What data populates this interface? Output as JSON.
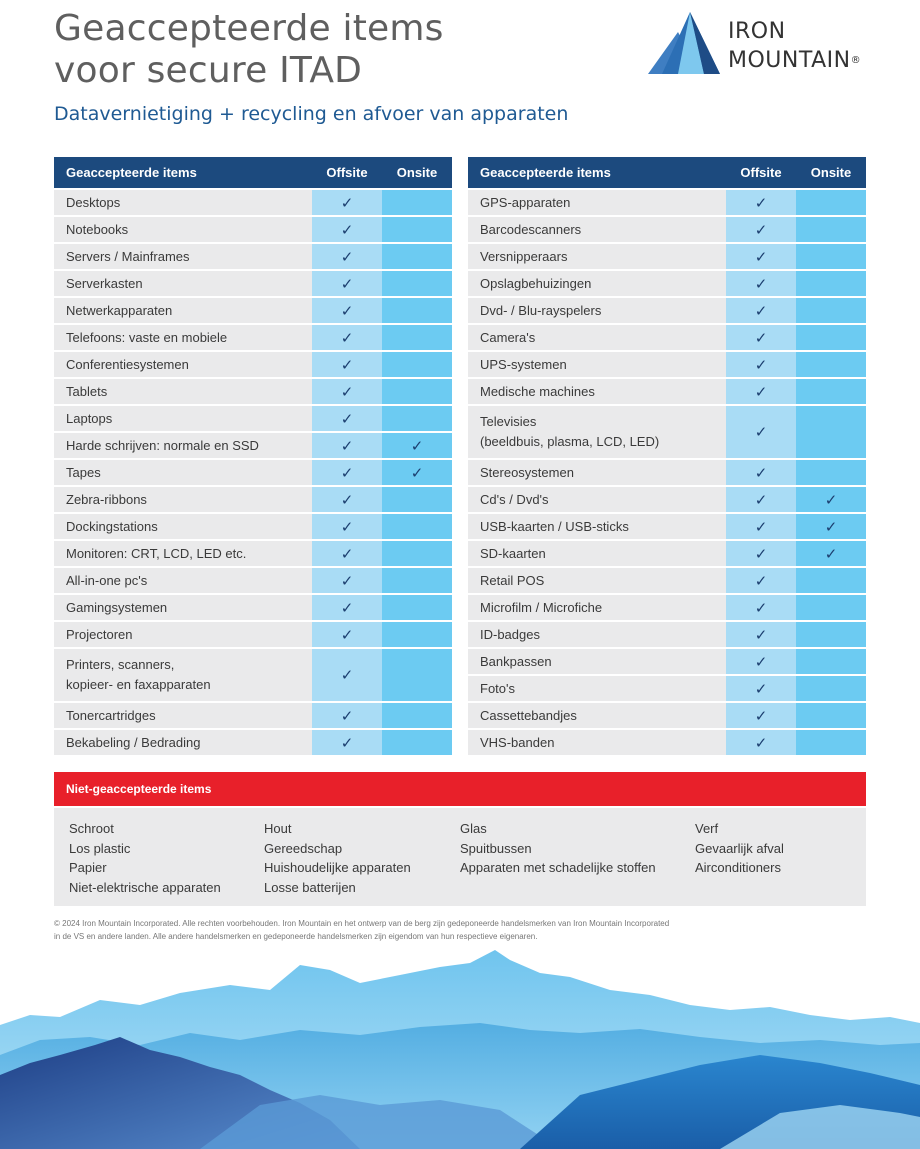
{
  "header": {
    "title_line1": "Geaccepteerde items",
    "title_line2": "voor secure ITAD",
    "subtitle": "Datavernietiging + recycling en afvoer van apparaten"
  },
  "logo": {
    "line1": "IRON",
    "line2": "MOUNTAIN",
    "reg": "®"
  },
  "check_symbol": "✓",
  "table_headers": {
    "item": "Geaccepteerde items",
    "offsite": "Offsite",
    "onsite": "Onsite"
  },
  "table_left": [
    {
      "line1": "Desktops",
      "offsite": true,
      "onsite": false
    },
    {
      "line1": "Notebooks",
      "offsite": true,
      "onsite": false
    },
    {
      "line1": "Servers / Mainframes",
      "offsite": true,
      "onsite": false
    },
    {
      "line1": "Serverkasten",
      "offsite": true,
      "onsite": false
    },
    {
      "line1": "Netwerkapparaten",
      "offsite": true,
      "onsite": false
    },
    {
      "line1": "Telefoons: vaste en mobiele",
      "offsite": true,
      "onsite": false
    },
    {
      "line1": "Conferentiesystemen",
      "offsite": true,
      "onsite": false
    },
    {
      "line1": "Tablets",
      "offsite": true,
      "onsite": false
    },
    {
      "line1": "Laptops",
      "offsite": true,
      "onsite": false
    },
    {
      "line1": "Harde schrijven: normale en SSD",
      "offsite": true,
      "onsite": true
    },
    {
      "line1": "Tapes",
      "offsite": true,
      "onsite": true
    },
    {
      "line1": "Zebra-ribbons",
      "offsite": true,
      "onsite": false
    },
    {
      "line1": "Dockingstations",
      "offsite": true,
      "onsite": false
    },
    {
      "line1": "Monitoren: CRT, LCD, LED etc.",
      "offsite": true,
      "onsite": false
    },
    {
      "line1": "All-in-one pc's",
      "offsite": true,
      "onsite": false
    },
    {
      "line1": "Gamingsystemen",
      "offsite": true,
      "onsite": false
    },
    {
      "line1": "Projectoren",
      "offsite": true,
      "onsite": false
    },
    {
      "line1": "Printers, scanners,",
      "line2": "kopieer- en faxapparaten",
      "offsite": true,
      "onsite": false
    },
    {
      "line1": "Tonercartridges",
      "offsite": true,
      "onsite": false
    },
    {
      "line1": "Bekabeling / Bedrading",
      "offsite": true,
      "onsite": false
    }
  ],
  "table_right": [
    {
      "line1": "GPS-apparaten",
      "offsite": true,
      "onsite": false
    },
    {
      "line1": "Barcodescanners",
      "offsite": true,
      "onsite": false
    },
    {
      "line1": "Versnipperaars",
      "offsite": true,
      "onsite": false
    },
    {
      "line1": "Opslagbehuizingen",
      "offsite": true,
      "onsite": false
    },
    {
      "line1": "Dvd- / Blu-rayspelers",
      "offsite": true,
      "onsite": false
    },
    {
      "line1": "Camera's",
      "offsite": true,
      "onsite": false
    },
    {
      "line1": "UPS-systemen",
      "offsite": true,
      "onsite": false
    },
    {
      "line1": "Medische machines",
      "offsite": true,
      "onsite": false
    },
    {
      "line1": "Televisies",
      "line2": "(beeldbuis, plasma, LCD, LED)",
      "offsite": true,
      "onsite": false
    },
    {
      "line1": "Stereosystemen",
      "offsite": true,
      "onsite": false
    },
    {
      "line1": "Cd's / Dvd's",
      "offsite": true,
      "onsite": true
    },
    {
      "line1": "USB-kaarten / USB-sticks",
      "offsite": true,
      "onsite": true
    },
    {
      "line1": "SD-kaarten",
      "offsite": true,
      "onsite": true
    },
    {
      "line1": "Retail POS",
      "offsite": true,
      "onsite": false
    },
    {
      "line1": "Microfilm / Microfiche",
      "offsite": true,
      "onsite": false
    },
    {
      "line1": "ID-badges",
      "offsite": true,
      "onsite": false
    },
    {
      "line1": "Bankpassen",
      "offsite": true,
      "onsite": false
    },
    {
      "line1": "Foto's",
      "offsite": true,
      "onsite": false
    },
    {
      "line1": "Cassettebandjes",
      "offsite": true,
      "onsite": false
    },
    {
      "line1": "VHS-banden",
      "offsite": true,
      "onsite": false
    }
  ],
  "not_accepted": {
    "title": "Niet-geaccepteerde items",
    "columns": [
      [
        "Schroot",
        "Los plastic",
        "Papier",
        "Niet-elektrische apparaten"
      ],
      [
        "Hout",
        "Gereedschap",
        "Huishoudelijke apparaten",
        "Losse batterijen"
      ],
      [
        "Glas",
        "Spuitbussen",
        "Apparaten met schadelijke stoffen"
      ],
      [
        "Verf",
        "Gevaarlijk afval",
        "Airconditioners"
      ]
    ]
  },
  "footer": {
    "copyright_line1": "© 2024 Iron Mountain Incorporated. Alle rechten voorbehouden. Iron Mountain en het ontwerp van de berg zijn gedeponeerde handelsmerken van Iron Mountain Incorporated",
    "copyright_line2": "in de VS en andere landen. Alle andere handelsmerken en gedeponeerde handelsmerken zijn eigendom van hun respectieve eigenaren."
  },
  "colors": {
    "header_navy": "#1c4a7e",
    "offsite_blue": "#a9dcf5",
    "onsite_blue": "#6ccbf2",
    "alert_red": "#e8202a",
    "subtitle_blue": "#1f5a93"
  }
}
